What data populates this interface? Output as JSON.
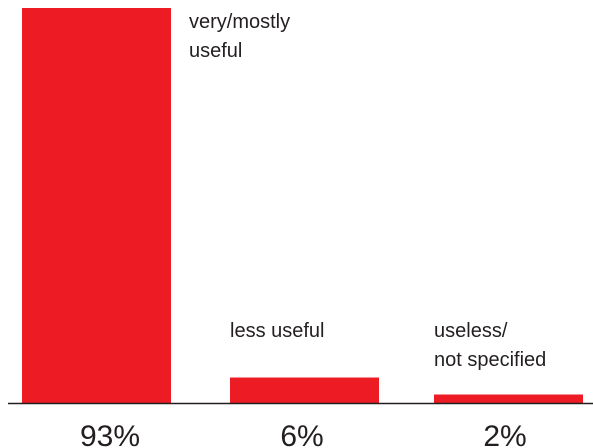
{
  "chart_data": {
    "type": "bar",
    "categories": [
      [
        "very/mostly",
        "useful"
      ],
      [
        "less useful"
      ],
      [
        "useless/",
        "not specified"
      ]
    ],
    "values": [
      93,
      6,
      2
    ],
    "value_labels": [
      "93%",
      "6%",
      "2%"
    ],
    "unit": "%",
    "ylim": [
      0,
      93
    ],
    "grid": false,
    "legend": "none",
    "colors": {
      "bar": "#ed1c24",
      "axis": "#231f20",
      "text": "#231f20"
    }
  }
}
